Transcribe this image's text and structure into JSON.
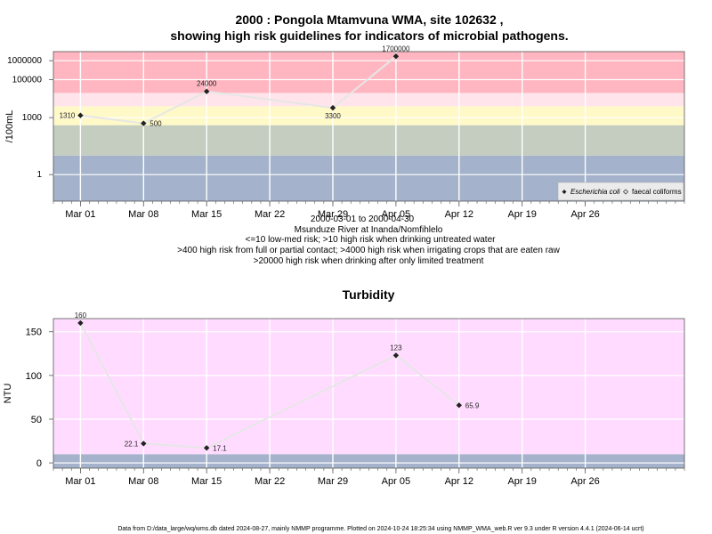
{
  "header": {
    "title_line1": "2000 : Pongola Mtamvuna WMA, site 102632 ,",
    "title_line2": "showing high risk guidelines for indicators of microbial pathogens."
  },
  "info": {
    "date_range": "2000-03-01 to 2000-04-30",
    "location": "Msunduze River at Inanda/Nomfihlelo",
    "risk_line1": "<=10 low-med risk; >10 high risk when drinking untreated water",
    "risk_line2": ">400 high risk from full or partial contact; >4000 high risk when irrigating crops that are eaten raw",
    "risk_line3": ">20000 high risk when drinking after only limited treatment"
  },
  "footer": "Data from D:/data_large/wq/wms.db dated 2024-08-27, mainly NMMP programme. Plotted on 2024-10-24 18:25:34 using NMMP_WMA_web.R ver 9.3 under R version 4.4.1 (2024-06-14 ucrt)",
  "colors": {
    "band_red": "#ffb6c1",
    "band_pink": "#ffe4ec",
    "band_yellow": "#fff9c8",
    "band_sage": "#c4cdbf",
    "band_blue": "#a4b2cb",
    "turb_bg": "#ffdcff",
    "line": "#e6e6e6",
    "point": "#222222"
  },
  "chart_data": [
    {
      "type": "line",
      "title": "",
      "ylabel": "/100mL",
      "yscale": "log10",
      "ylim": [
        0.04,
        3000000
      ],
      "x_ticks": [
        "Mar 01",
        "Mar 08",
        "Mar 15",
        "Mar 22",
        "Mar 29",
        "Apr 05",
        "Apr 12",
        "Apr 19",
        "Apr 26"
      ],
      "x_tick_dates": [
        "2000-03-01",
        "2000-03-08",
        "2000-03-15",
        "2000-03-22",
        "2000-03-29",
        "2000-04-05",
        "2000-04-12",
        "2000-04-19",
        "2000-04-26"
      ],
      "x_range": [
        "2000-02-27",
        "2000-05-07"
      ],
      "y_ticks": [
        1,
        1000,
        100000,
        1000000
      ],
      "y_tick_labels": [
        "1",
        "1000",
        "100000",
        "1000000"
      ],
      "guideline_bands": [
        {
          "from": 0.04,
          "to": 10,
          "color": "#a4b2cb"
        },
        {
          "from": 10,
          "to": 400,
          "color": "#c4cdbf"
        },
        {
          "from": 400,
          "to": 4000,
          "color": "#fff9c8"
        },
        {
          "from": 4000,
          "to": 20000,
          "color": "#ffe4ec"
        },
        {
          "from": 20000,
          "to": 3000000,
          "color": "#ffb6c1"
        }
      ],
      "series": [
        {
          "name": "Escherichia coli",
          "x": [
            "2000-03-01",
            "2000-03-08",
            "2000-03-15",
            "2000-03-29",
            "2000-04-05"
          ],
          "values": [
            1310,
            500,
            24000,
            3300,
            1700000
          ],
          "labels": [
            "1310",
            "500",
            "24000",
            "3300",
            "1700000"
          ]
        }
      ],
      "legend": {
        "position": "bottom-right",
        "entries": [
          "Escherichia coli",
          "faecal coliforms"
        ]
      }
    },
    {
      "type": "line",
      "title": "Turbidity",
      "ylabel": "NTU",
      "ylim": [
        -6,
        165
      ],
      "x_ticks": [
        "Mar 01",
        "Mar 08",
        "Mar 15",
        "Mar 22",
        "Mar 29",
        "Apr 05",
        "Apr 12",
        "Apr 19",
        "Apr 26"
      ],
      "x_tick_dates": [
        "2000-03-01",
        "2000-03-08",
        "2000-03-15",
        "2000-03-22",
        "2000-03-29",
        "2000-04-05",
        "2000-04-12",
        "2000-04-19",
        "2000-04-26"
      ],
      "x_range": [
        "2000-02-27",
        "2000-05-07"
      ],
      "y_ticks": [
        0,
        50,
        100,
        150
      ],
      "y_tick_labels": [
        "0",
        "50",
        "100",
        "150"
      ],
      "guideline_bands": [
        {
          "from": -6,
          "to": 10,
          "color": "#a4b2cb"
        },
        {
          "from": 10,
          "to": 165,
          "color": "#ffdcff"
        }
      ],
      "series": [
        {
          "x": [
            "2000-03-01",
            "2000-03-08",
            "2000-03-15",
            "2000-04-05",
            "2000-04-12"
          ],
          "values": [
            160,
            22.1,
            17.1,
            123,
            65.9
          ],
          "labels": [
            "160",
            "22.1",
            "17.1",
            "123",
            "65.9"
          ]
        }
      ]
    }
  ]
}
